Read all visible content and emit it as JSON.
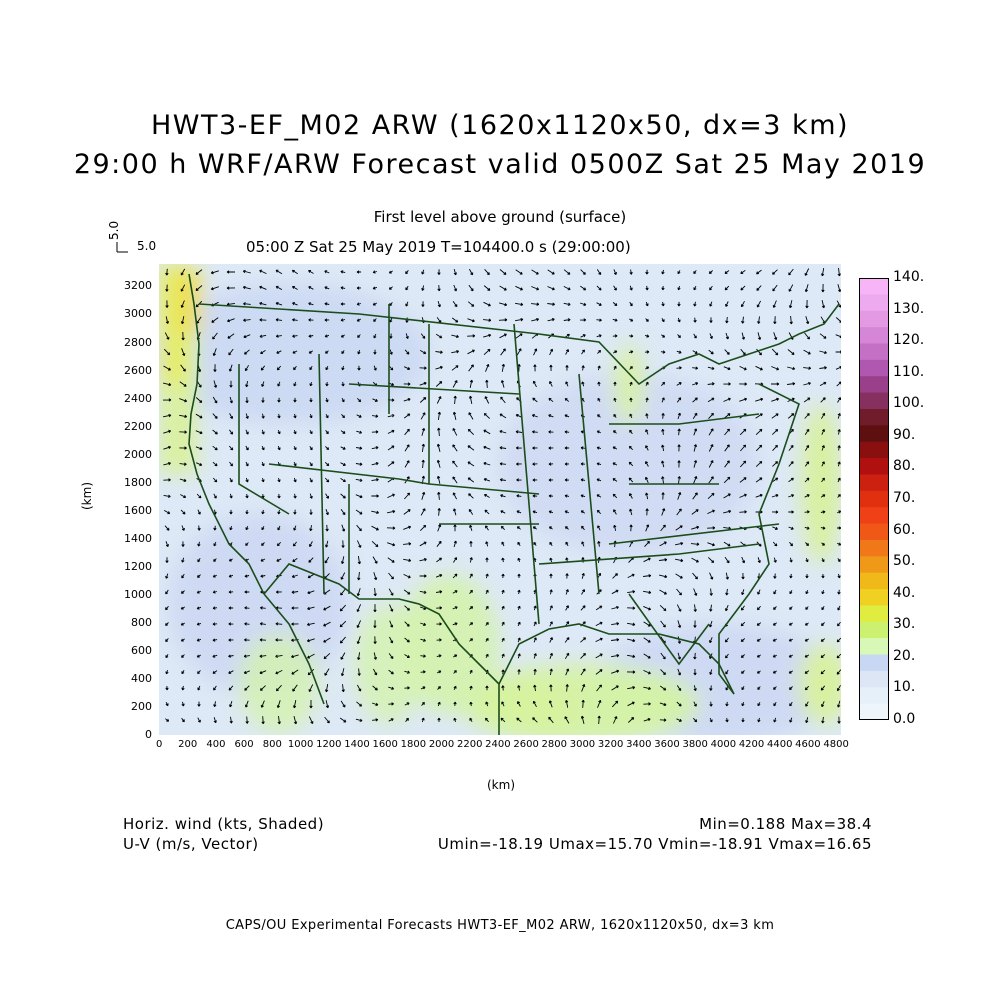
{
  "header": {
    "title_line1": "HWT3-EF_M02 ARW (1620x1120x50, dx=3 km)",
    "title_line2": "29:00 h WRF/ARW Forecast valid 0500Z Sat 25 May 2019",
    "level": "First level above ground (surface)",
    "time_line": "05:00 Z Sat 25 May 2019    T=104400.0 s (29:00:00)",
    "vector_ref_value": "5.0",
    "vector_ref_label": "5.0"
  },
  "axes": {
    "x_label": "(km)",
    "y_label": "(km)",
    "x_ticks": [
      "0",
      "200",
      "400",
      "600",
      "800",
      "1000",
      "1200",
      "1400",
      "1600",
      "1800",
      "2000",
      "2200",
      "2400",
      "2600",
      "2800",
      "3000",
      "3200",
      "3400",
      "3600",
      "3800",
      "4000",
      "4200",
      "4400",
      "4600",
      "4800"
    ],
    "y_ticks": [
      "0",
      "200",
      "400",
      "600",
      "800",
      "1000",
      "1200",
      "1400",
      "1600",
      "1800",
      "2000",
      "2200",
      "2400",
      "2600",
      "2800",
      "3000",
      "3200"
    ]
  },
  "colorbar": {
    "labels": [
      "140.",
      "130.",
      "120.",
      "110.",
      "100.",
      "90.",
      "80.",
      "70.",
      "60.",
      "50.",
      "40.",
      "30.",
      "20.",
      "10.",
      "0.0"
    ],
    "colors": [
      "#f7b4f7",
      "#eeaaee",
      "#e39ae3",
      "#d686d6",
      "#c470c4",
      "#b058b0",
      "#9a3f8a",
      "#85305f",
      "#701c2a",
      "#5e1010",
      "#8a1010",
      "#b01010",
      "#cc2010",
      "#e03010",
      "#f04018",
      "#f05818",
      "#f07818",
      "#f09818",
      "#f0b818",
      "#f0d020",
      "#e0ec40",
      "#ccf070",
      "#d8f8b8",
      "#c8d8f4",
      "#dce6f4",
      "#e6f0f8",
      "#eef6fb"
    ]
  },
  "footer": {
    "shaded_label": "Horiz. wind (kts, Shaded)",
    "vector_label": "U-V (m/s, Vector)",
    "minmax": "Min=0.188 Max=38.4",
    "uv_stats": "Umin=-18.19 Umax=15.70 Vmin=-18.91 Vmax=16.65",
    "credit": "CAPS/OU Experimental Forecasts  HWT3-EF_M02 ARW, 1620x1120x50, dx=3 km"
  }
}
